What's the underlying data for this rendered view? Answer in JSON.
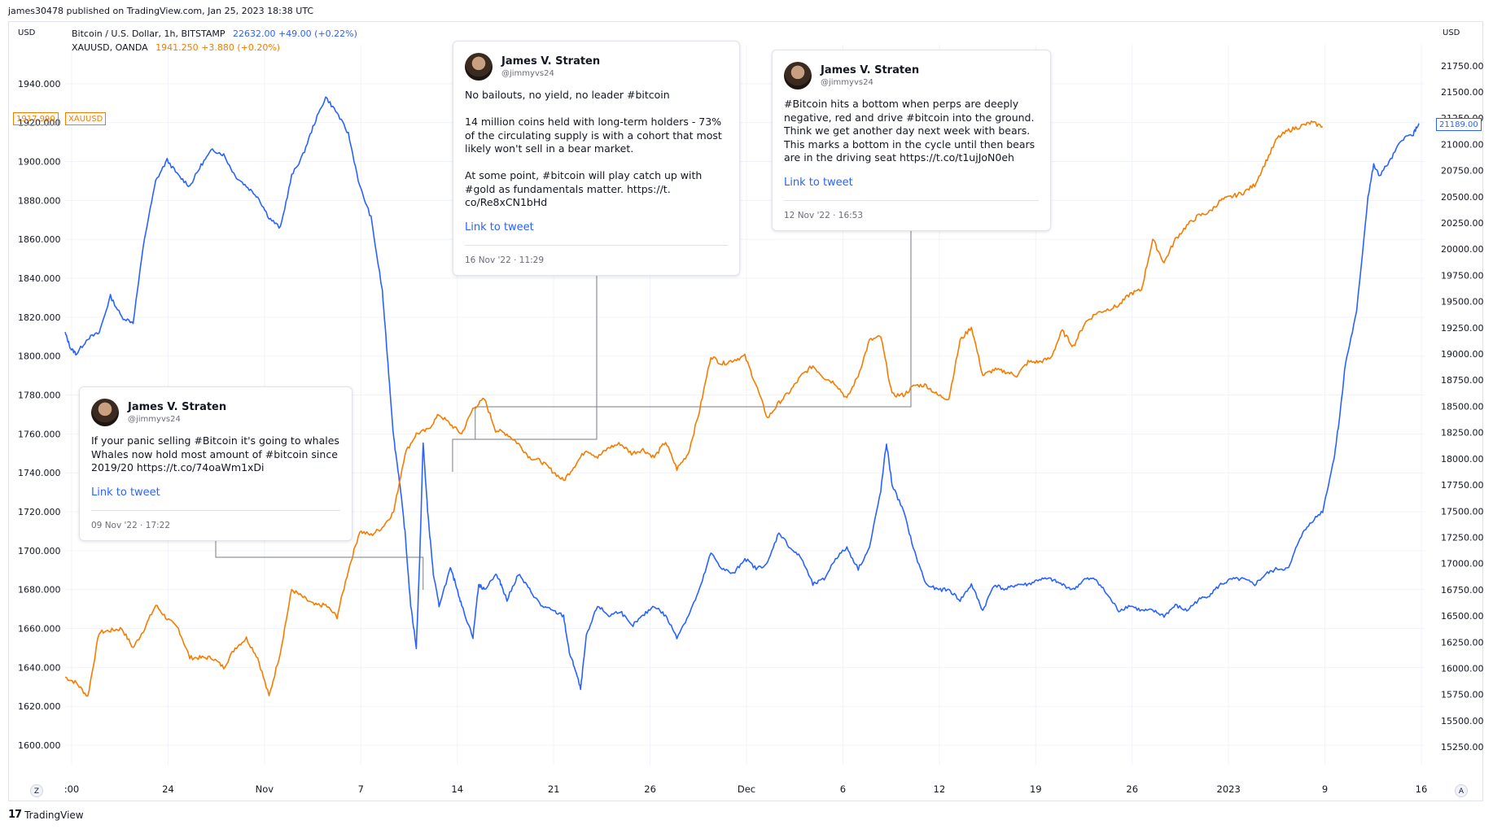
{
  "publisher": "james30478 published on TradingView.com, Jan 25, 2023 18:38 UTC",
  "units": {
    "left": "USD",
    "right": "USD"
  },
  "legend": {
    "btc": {
      "symbol": "Bitcoin / U.S. Dollar, 1h, BITSTAMP",
      "values": "22632.00  +49.00 (+0.22%)",
      "color": "#2962ff"
    },
    "xau": {
      "symbol": "XAUUSD, OANDA",
      "values": "1941.250  +3.880 (+0.20%)",
      "color": "#f57c00"
    }
  },
  "badges": {
    "left_value": "1917.990",
    "left_symbol": "XAUUSD",
    "right_value": "21189.00"
  },
  "corner_buttons": {
    "left": "Z",
    "right": "A"
  },
  "tweets": [
    {
      "name": "James V. Straten",
      "handle": "@jimmyvs24",
      "text": "If your panic selling #Bitcoin it's going to whales\nWhales now hold most amount of #bitcoin since\n2019/20 https://t.co/74oaWm1xDi",
      "link": "Link to tweet",
      "date": "09 Nov '22 · 17:22"
    },
    {
      "name": "James V. Straten",
      "handle": "@jimmyvs24",
      "text": "No bailouts, no yield, no leader #bitcoin\n\n14 million coins held with long-term holders - 73%\nof the circulating supply is with a cohort that most\nlikely won't sell in a bear market.\n\nAt some point, #bitcoin will play catch up with\n#gold as fundamentals matter. https://t.\nco/Re8xCN1bHd",
      "link": "Link to tweet",
      "date": "16 Nov '22 · 11:29"
    },
    {
      "name": "James V. Straten",
      "handle": "@jimmyvs24",
      "text": "#Bitcoin hits a bottom when perps are deeply\nnegative, red and drive #bitcoin into the ground.\nThink we get another day next week with bears.\nThis marks a bottom in the cycle until then bears\nare in the driving seat https://t.co/t1ujJoN0eh",
      "link": "Link to tweet",
      "date": "12 Nov '22 · 16:53"
    }
  ],
  "footer": {
    "logo": "17",
    "brand": "TradingView"
  },
  "chart_data": {
    "type": "line",
    "x_tick_labels": [
      ":00",
      "24",
      "Nov",
      "7",
      "14",
      "21",
      "26",
      "Dec",
      "6",
      "12",
      "19",
      "26",
      "2023",
      "9",
      "16"
    ],
    "left_axis": {
      "label": "USD",
      "series": "XAUUSD",
      "ylim": [
        1590,
        1960
      ],
      "ticks": [
        "1940.000",
        "1920.000",
        "1900.000",
        "1880.000",
        "1860.000",
        "1840.000",
        "1820.000",
        "1800.000",
        "1780.000",
        "1760.000",
        "1740.000",
        "1720.000",
        "1700.000",
        "1680.000",
        "1660.000",
        "1640.000",
        "1620.000",
        "1600.000"
      ]
    },
    "right_axis": {
      "label": "USD",
      "series": "BTCUSD",
      "ylim": [
        15080,
        21950
      ],
      "ticks": [
        "21750.00",
        "21500.00",
        "21250.00",
        "21000.00",
        "20750.00",
        "20500.00",
        "20250.00",
        "20000.00",
        "19750.00",
        "19500.00",
        "19250.00",
        "19000.00",
        "18750.00",
        "18500.00",
        "18250.00",
        "18000.00",
        "17750.00",
        "17500.00",
        "17250.00",
        "17000.00",
        "16750.00",
        "16500.00",
        "16250.00",
        "16000.00",
        "15750.00",
        "15500.00",
        "15250.00"
      ]
    },
    "grid": true,
    "series": [
      {
        "name": "Bitcoin / U.S. Dollar, 1h, BITSTAMP",
        "axis": "right",
        "color": "#2962ff",
        "points": [
          [
            0,
            19200
          ],
          [
            0.5,
            19050
          ],
          [
            1,
            19000
          ],
          [
            2,
            19150
          ],
          [
            3,
            19200
          ],
          [
            4,
            19550
          ],
          [
            5,
            19350
          ],
          [
            6,
            19300
          ],
          [
            7,
            20100
          ],
          [
            8,
            20650
          ],
          [
            9,
            20850
          ],
          [
            10,
            20700
          ],
          [
            11,
            20600
          ],
          [
            12,
            20800
          ],
          [
            13,
            20950
          ],
          [
            14,
            20900
          ],
          [
            15,
            20700
          ],
          [
            16,
            20600
          ],
          [
            17,
            20500
          ],
          [
            18,
            20300
          ],
          [
            19,
            20200
          ],
          [
            20,
            20700
          ],
          [
            21,
            20900
          ],
          [
            22,
            21200
          ],
          [
            23,
            21450
          ],
          [
            24,
            21300
          ],
          [
            25,
            21100
          ],
          [
            26,
            20600
          ],
          [
            27,
            20300
          ],
          [
            28,
            19600
          ],
          [
            28.5,
            18900
          ],
          [
            29,
            18200
          ],
          [
            29.5,
            17800
          ],
          [
            30,
            17300
          ],
          [
            30.5,
            16600
          ],
          [
            31,
            16200
          ],
          [
            31.3,
            17050
          ],
          [
            31.6,
            18150
          ],
          [
            32,
            17500
          ],
          [
            32.5,
            16900
          ],
          [
            33,
            16600
          ],
          [
            34,
            16950
          ],
          [
            34.5,
            16800
          ],
          [
            35,
            16600
          ],
          [
            36,
            16300
          ],
          [
            36.5,
            16800
          ],
          [
            37,
            16750
          ],
          [
            38,
            16900
          ],
          [
            38.5,
            16800
          ],
          [
            39,
            16650
          ],
          [
            40,
            16900
          ],
          [
            41,
            16750
          ],
          [
            42,
            16600
          ],
          [
            43,
            16550
          ],
          [
            44,
            16500
          ],
          [
            44.5,
            16150
          ],
          [
            45,
            16000
          ],
          [
            45.5,
            15800
          ],
          [
            46,
            16300
          ],
          [
            47,
            16600
          ],
          [
            48,
            16500
          ],
          [
            49,
            16550
          ],
          [
            50,
            16400
          ],
          [
            51,
            16500
          ],
          [
            52,
            16600
          ],
          [
            53,
            16500
          ],
          [
            54,
            16300
          ],
          [
            55,
            16500
          ],
          [
            56,
            16750
          ],
          [
            57,
            17100
          ],
          [
            58,
            16950
          ],
          [
            59,
            16900
          ],
          [
            60,
            17050
          ],
          [
            61,
            16950
          ],
          [
            62,
            17000
          ],
          [
            63,
            17300
          ],
          [
            64,
            17150
          ],
          [
            65,
            17050
          ],
          [
            66,
            16800
          ],
          [
            67,
            16850
          ],
          [
            68,
            17050
          ],
          [
            69,
            17150
          ],
          [
            70,
            16950
          ],
          [
            71,
            17150
          ],
          [
            72,
            17700
          ],
          [
            72.5,
            18150
          ],
          [
            73,
            17750
          ],
          [
            74,
            17500
          ],
          [
            75,
            17100
          ],
          [
            76,
            16800
          ],
          [
            77,
            16750
          ],
          [
            78,
            16750
          ],
          [
            79,
            16650
          ],
          [
            80,
            16800
          ],
          [
            81,
            16550
          ],
          [
            82,
            16800
          ],
          [
            83,
            16750
          ],
          [
            84,
            16800
          ],
          [
            85,
            16800
          ],
          [
            86,
            16850
          ],
          [
            87,
            16850
          ],
          [
            88,
            16800
          ],
          [
            89,
            16750
          ],
          [
            90,
            16850
          ],
          [
            91,
            16850
          ],
          [
            92,
            16700
          ],
          [
            93,
            16550
          ],
          [
            94,
            16600
          ],
          [
            95,
            16550
          ],
          [
            96,
            16550
          ],
          [
            97,
            16500
          ],
          [
            98,
            16600
          ],
          [
            99,
            16550
          ],
          [
            100,
            16650
          ],
          [
            101,
            16700
          ],
          [
            102,
            16800
          ],
          [
            103,
            16850
          ],
          [
            104,
            16850
          ],
          [
            105,
            16800
          ],
          [
            106,
            16900
          ],
          [
            107,
            16950
          ],
          [
            108,
            16950
          ],
          [
            109,
            17250
          ],
          [
            110,
            17400
          ],
          [
            111,
            17500
          ],
          [
            112,
            18000
          ],
          [
            112.5,
            18400
          ],
          [
            113,
            18900
          ],
          [
            114,
            19400
          ],
          [
            115,
            20500
          ],
          [
            115.5,
            20800
          ],
          [
            116,
            20700
          ],
          [
            117,
            20850
          ],
          [
            118,
            21050
          ],
          [
            119,
            21100
          ],
          [
            119.5,
            21200
          ]
        ]
      },
      {
        "name": "XAUUSD, OANDA",
        "axis": "left",
        "color": "#f57c00",
        "points": [
          [
            0,
            1635
          ],
          [
            1,
            1632
          ],
          [
            2,
            1625
          ],
          [
            3,
            1658
          ],
          [
            4,
            1659
          ],
          [
            5,
            1660
          ],
          [
            6,
            1650
          ],
          [
            7,
            1660
          ],
          [
            8,
            1672
          ],
          [
            9,
            1665
          ],
          [
            10,
            1660
          ],
          [
            11,
            1645
          ],
          [
            12,
            1645
          ],
          [
            13,
            1645
          ],
          [
            14,
            1640
          ],
          [
            15,
            1650
          ],
          [
            16,
            1655
          ],
          [
            17,
            1645
          ],
          [
            18,
            1625
          ],
          [
            19,
            1648
          ],
          [
            20,
            1680
          ],
          [
            21,
            1676
          ],
          [
            22,
            1672
          ],
          [
            23,
            1672
          ],
          [
            24,
            1666
          ],
          [
            25,
            1690
          ],
          [
            26,
            1710
          ],
          [
            27,
            1708
          ],
          [
            28,
            1712
          ],
          [
            29,
            1720
          ],
          [
            30,
            1750
          ],
          [
            31,
            1760
          ],
          [
            32,
            1762
          ],
          [
            33,
            1770
          ],
          [
            34,
            1765
          ],
          [
            35,
            1760
          ],
          [
            36,
            1773
          ],
          [
            37,
            1778
          ],
          [
            38,
            1762
          ],
          [
            39,
            1760
          ],
          [
            40,
            1755
          ],
          [
            41,
            1748
          ],
          [
            42,
            1746
          ],
          [
            43,
            1741
          ],
          [
            44,
            1736
          ],
          [
            45,
            1744
          ],
          [
            46,
            1752
          ],
          [
            47,
            1748
          ],
          [
            48,
            1753
          ],
          [
            49,
            1755
          ],
          [
            50,
            1750
          ],
          [
            51,
            1752
          ],
          [
            52,
            1748
          ],
          [
            53,
            1756
          ],
          [
            54,
            1742
          ],
          [
            55,
            1750
          ],
          [
            56,
            1772
          ],
          [
            57,
            1800
          ],
          [
            58,
            1796
          ],
          [
            59,
            1798
          ],
          [
            60,
            1800
          ],
          [
            61,
            1785
          ],
          [
            62,
            1768
          ],
          [
            63,
            1776
          ],
          [
            64,
            1782
          ],
          [
            65,
            1790
          ],
          [
            66,
            1795
          ],
          [
            67,
            1789
          ],
          [
            68,
            1786
          ],
          [
            69,
            1778
          ],
          [
            70,
            1790
          ],
          [
            71,
            1808
          ],
          [
            72,
            1810
          ],
          [
            73,
            1780
          ],
          [
            74,
            1780
          ],
          [
            75,
            1785
          ],
          [
            76,
            1785
          ],
          [
            77,
            1780
          ],
          [
            78,
            1778
          ],
          [
            79,
            1808
          ],
          [
            80,
            1815
          ],
          [
            81,
            1790
          ],
          [
            82,
            1793
          ],
          [
            83,
            1792
          ],
          [
            84,
            1790
          ],
          [
            85,
            1797
          ],
          [
            86,
            1797
          ],
          [
            87,
            1799
          ],
          [
            88,
            1813
          ],
          [
            89,
            1805
          ],
          [
            90,
            1817
          ],
          [
            91,
            1822
          ],
          [
            92,
            1824
          ],
          [
            93,
            1826
          ],
          [
            94,
            1832
          ],
          [
            95,
            1834
          ],
          [
            96,
            1860
          ],
          [
            97,
            1848
          ],
          [
            98,
            1860
          ],
          [
            99,
            1867
          ],
          [
            100,
            1872
          ],
          [
            101,
            1874
          ],
          [
            102,
            1880
          ],
          [
            103,
            1882
          ],
          [
            104,
            1884
          ],
          [
            105,
            1888
          ],
          [
            106,
            1900
          ],
          [
            107,
            1912
          ],
          [
            108,
            1916
          ],
          [
            109,
            1918
          ],
          [
            110,
            1920
          ],
          [
            111,
            1918
          ]
        ]
      }
    ],
    "annotation_links": [
      {
        "tweet": "09 Nov '22 · 17:22",
        "x": 31.6
      },
      {
        "tweet": "16 Nov '22 · 11:29",
        "x": 34.2
      },
      {
        "tweet": "12 Nov '22 · 16:53",
        "x": 36.2
      }
    ]
  }
}
